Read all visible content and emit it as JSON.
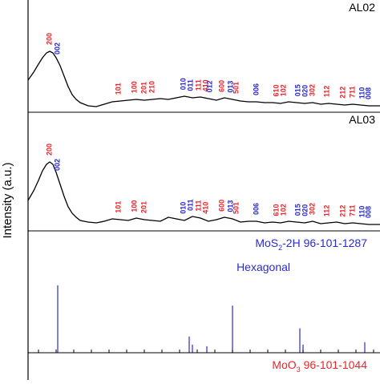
{
  "ylabel": "Intensity (a.u.)",
  "chart_data": [
    {
      "type": "line",
      "label": "AL02",
      "xlim": [
        0,
        439
      ],
      "ylim": [
        0,
        140
      ],
      "x": [
        0,
        7,
        13,
        18,
        23,
        27,
        31,
        35,
        40,
        45,
        50,
        55,
        60,
        65,
        75,
        85,
        95,
        105,
        115,
        125,
        135,
        145,
        155,
        165,
        175,
        185,
        195,
        205,
        215,
        225,
        235,
        245,
        255,
        265,
        275,
        285,
        295,
        305,
        315,
        325,
        335,
        345,
        355,
        365,
        375,
        385,
        395,
        405,
        415,
        425,
        439
      ],
      "series": [
        {
          "color": "#000000",
          "values": [
            40,
            50,
            60,
            68,
            74,
            76,
            74,
            68,
            58,
            45,
            32,
            22,
            16,
            12,
            8,
            7,
            10,
            13,
            14,
            15,
            16,
            15,
            16,
            17,
            16,
            18,
            20,
            18,
            19,
            17,
            15,
            18,
            16,
            14,
            13,
            13,
            12,
            12,
            11,
            13,
            12,
            11,
            12,
            10,
            11,
            10,
            9,
            10,
            9,
            8,
            8
          ]
        }
      ],
      "peaks": [
        {
          "label": "200",
          "color": "#e8262a",
          "x": 27
        },
        {
          "label": "002",
          "color": "#2a2ad0",
          "x": 37
        },
        {
          "label": "101",
          "color": "#e8262a",
          "x": 113
        },
        {
          "label": "100",
          "color": "#e8262a",
          "x": 133
        },
        {
          "label": "201",
          "color": "#e8262a",
          "x": 145
        },
        {
          "label": "210",
          "color": "#e8262a",
          "x": 155
        },
        {
          "label": "010",
          "color": "#2a2ad0",
          "x": 194
        },
        {
          "label": "011",
          "color": "#2a2ad0",
          "x": 203
        },
        {
          "label": "111",
          "color": "#e8262a",
          "x": 213
        },
        {
          "label": "410",
          "color": "#e8262a",
          "x": 222
        },
        {
          "label": "012",
          "color": "#2a2ad0",
          "x": 227
        },
        {
          "label": "600",
          "color": "#e8262a",
          "x": 242
        },
        {
          "label": "013",
          "color": "#2a2ad0",
          "x": 253
        },
        {
          "label": "501",
          "color": "#e8262a",
          "x": 260
        },
        {
          "label": "006",
          "color": "#2a2ad0",
          "x": 285
        },
        {
          "label": "610",
          "color": "#e8262a",
          "x": 310
        },
        {
          "label": "102",
          "color": "#e8262a",
          "x": 319
        },
        {
          "label": "015",
          "color": "#2a2ad0",
          "x": 337
        },
        {
          "label": "020",
          "color": "#2a2ad0",
          "x": 346
        },
        {
          "label": "302",
          "color": "#e8262a",
          "x": 355
        },
        {
          "label": "112",
          "color": "#e8262a",
          "x": 373
        },
        {
          "label": "212",
          "color": "#e8262a",
          "x": 393
        },
        {
          "label": "711",
          "color": "#e8262a",
          "x": 405
        },
        {
          "label": "110",
          "color": "#2a2ad0",
          "x": 417
        },
        {
          "label": "008",
          "color": "#2a2ad0",
          "x": 425
        }
      ]
    },
    {
      "type": "line",
      "label": "AL03",
      "xlim": [
        0,
        439
      ],
      "ylim": [
        0,
        148
      ],
      "x": [
        0,
        7,
        13,
        18,
        23,
        27,
        31,
        35,
        40,
        45,
        50,
        55,
        60,
        65,
        75,
        85,
        95,
        105,
        115,
        125,
        135,
        145,
        155,
        165,
        175,
        185,
        195,
        205,
        215,
        225,
        235,
        245,
        255,
        265,
        275,
        285,
        295,
        305,
        315,
        325,
        335,
        345,
        355,
        365,
        375,
        385,
        395,
        405,
        415,
        425,
        439
      ],
      "series": [
        {
          "color": "#000000",
          "values": [
            38,
            50,
            63,
            75,
            83,
            86,
            83,
            73,
            58,
            43,
            30,
            22,
            17,
            13,
            11,
            10,
            12,
            15,
            14,
            13,
            16,
            14,
            13,
            12,
            17,
            15,
            13,
            18,
            16,
            12,
            14,
            17,
            15,
            11,
            12,
            12,
            10,
            11,
            10,
            12,
            11,
            10,
            12,
            9,
            10,
            11,
            9,
            10,
            9,
            8,
            8
          ]
        }
      ],
      "peaks": [
        {
          "label": "200",
          "color": "#e8262a",
          "x": 27
        },
        {
          "label": "002",
          "color": "#2a2ad0",
          "x": 37
        },
        {
          "label": "101",
          "color": "#e8262a",
          "x": 113
        },
        {
          "label": "100",
          "color": "#e8262a",
          "x": 133
        },
        {
          "label": "201",
          "color": "#e8262a",
          "x": 145
        },
        {
          "label": "010",
          "color": "#2a2ad0",
          "x": 194
        },
        {
          "label": "011",
          "color": "#2a2ad0",
          "x": 203
        },
        {
          "label": "111",
          "color": "#e8262a",
          "x": 213
        },
        {
          "label": "410",
          "color": "#e8262a",
          "x": 222
        },
        {
          "label": "600",
          "color": "#e8262a",
          "x": 242
        },
        {
          "label": "013",
          "color": "#2a2ad0",
          "x": 253
        },
        {
          "label": "501",
          "color": "#e8262a",
          "x": 260
        },
        {
          "label": "006",
          "color": "#2a2ad0",
          "x": 285
        },
        {
          "label": "610",
          "color": "#e8262a",
          "x": 310
        },
        {
          "label": "102",
          "color": "#e8262a",
          "x": 319
        },
        {
          "label": "015",
          "color": "#2a2ad0",
          "x": 337
        },
        {
          "label": "020",
          "color": "#2a2ad0",
          "x": 346
        },
        {
          "label": "302",
          "color": "#e8262a",
          "x": 355
        },
        {
          "label": "112",
          "color": "#e8262a",
          "x": 373
        },
        {
          "label": "212",
          "color": "#e8262a",
          "x": 393
        },
        {
          "label": "711",
          "color": "#e8262a",
          "x": 405
        },
        {
          "label": "110",
          "color": "#2a2ad0",
          "x": 417
        },
        {
          "label": "008",
          "color": "#2a2ad0",
          "x": 425
        }
      ]
    },
    {
      "type": "stick",
      "title": [
        "MoS",
        "2",
        "-2H 96-101-1287"
      ],
      "subtitle": "Hexagonal",
      "color": "#2a2ad0",
      "xlim": [
        0,
        439
      ],
      "ylim": [
        0,
        150
      ],
      "x": [
        37,
        201,
        205,
        223,
        255,
        339,
        343,
        420
      ],
      "values": [
        83,
        20,
        10,
        8,
        58,
        30,
        10,
        13
      ]
    },
    {
      "type": "stick",
      "title": [
        "MoO",
        "3",
        " 96-101-1044"
      ],
      "color": "#e8262a",
      "xlim": [
        0,
        439
      ],
      "ylim": [
        0,
        150
      ],
      "x": [],
      "values": []
    }
  ]
}
